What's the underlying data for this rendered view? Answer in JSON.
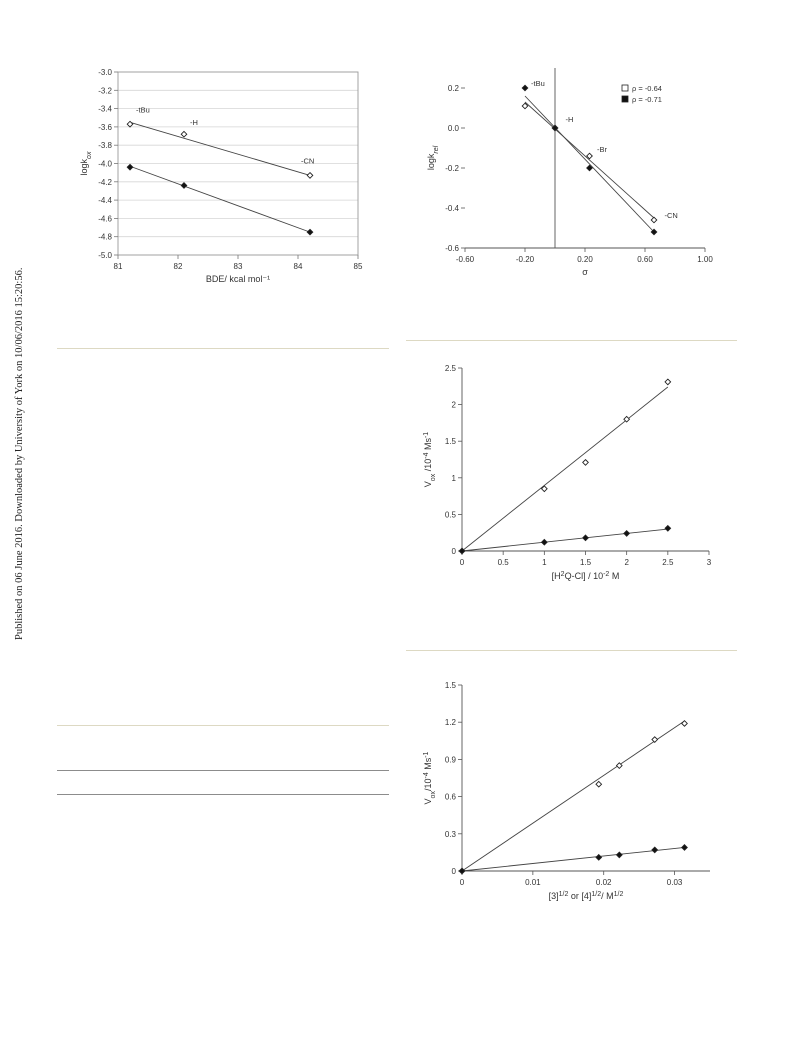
{
  "sidebar_text": "Published on 06 June 2016. Downloaded by University of York on 10/06/2016 15:20:56.",
  "chart_data": [
    {
      "id": "bde",
      "type": "scatter",
      "xlabel": "BDE/ kcal mol⁻¹",
      "ylabel_main": "logk",
      "ylabel_sub": "ox",
      "xlim": [
        81,
        85
      ],
      "ylim": [
        -5.0,
        -3.0
      ],
      "xticks": [
        81,
        82,
        83,
        84,
        85
      ],
      "xtick_labels": [
        "81",
        "82",
        "83",
        "84",
        "85"
      ],
      "yticks": [
        -3.0,
        -3.2,
        -3.4,
        -3.6,
        -3.8,
        -4.0,
        -4.2,
        -4.4,
        -4.6,
        -4.8,
        -5.0
      ],
      "ytick_labels": [
        "-3.0",
        "-3.2",
        "-3.4",
        "-3.6",
        "-3.8",
        "-4.0",
        "-4.2",
        "-4.4",
        "-4.6",
        "-4.8",
        "-5.0"
      ],
      "grid": true,
      "series": [
        {
          "marker": "open-diamond",
          "x": [
            81.2,
            82.1,
            84.2
          ],
          "y": [
            -3.57,
            -3.68,
            -4.13
          ],
          "fit": [
            [
              81.2,
              -3.55
            ],
            [
              84.2,
              -4.13
            ]
          ]
        },
        {
          "marker": "filled-diamond",
          "x": [
            81.2,
            82.1,
            84.2
          ],
          "y": [
            -4.04,
            -4.24,
            -4.75
          ],
          "fit": [
            [
              81.2,
              -4.03
            ],
            [
              84.2,
              -4.75
            ]
          ]
        }
      ],
      "annotations": [
        {
          "text": "-tBu",
          "x": 81.3,
          "y": -3.44
        },
        {
          "text": "-H",
          "x": 82.2,
          "y": -3.58
        },
        {
          "text": "-CN",
          "x": 84.05,
          "y": -4.0
        }
      ]
    },
    {
      "id": "hammett",
      "type": "scatter",
      "xlabel": "σ",
      "ylabel_main": "logk",
      "ylabel_sub": "rel",
      "xlim": [
        -0.6,
        1.0
      ],
      "ylim": [
        -0.6,
        0.3
      ],
      "xticks": [
        -0.6,
        -0.2,
        0.2,
        0.6,
        1.0
      ],
      "xtick_labels": [
        "-0.60",
        "-0.20",
        "0.20",
        "0.60",
        "1.00"
      ],
      "yticks": [
        0.2,
        0.0,
        -0.2,
        -0.4,
        -0.6
      ],
      "ytick_labels": [
        "0.2",
        "0.0",
        "-0.2",
        "-0.4",
        "-0.6"
      ],
      "grid": false,
      "legend": "top-right",
      "series": [
        {
          "name": "ρ = -0.64",
          "marker": "open-square",
          "point_marker": "open-diamond",
          "x": [
            -0.2,
            0.0,
            0.23,
            0.66
          ],
          "y": [
            0.11,
            0.0,
            -0.14,
            -0.46
          ],
          "fit": [
            [
              -0.2,
              0.13
            ],
            [
              0.66,
              -0.45
            ]
          ]
        },
        {
          "name": "ρ = -0.71",
          "marker": "filled-square",
          "point_marker": "filled-diamond",
          "x": [
            -0.2,
            0.0,
            0.23,
            0.66
          ],
          "y": [
            0.2,
            0.0,
            -0.2,
            -0.52
          ],
          "fit": [
            [
              -0.2,
              0.16
            ],
            [
              0.66,
              -0.52
            ]
          ]
        }
      ],
      "annotations": [
        {
          "text": "-tBu",
          "x": -0.16,
          "y": 0.21
        },
        {
          "text": "-H",
          "x": 0.07,
          "y": 0.03
        },
        {
          "text": "-Br",
          "x": 0.28,
          "y": -0.12
        },
        {
          "text": "-CN",
          "x": 0.73,
          "y": -0.45
        }
      ]
    },
    {
      "id": "conc",
      "type": "scatter",
      "xlabel_parts": [
        "[H",
        "2",
        "Q-Cl] / 10",
        "-2",
        " M"
      ],
      "ylabel_parts": [
        "V",
        "ox",
        " /10",
        "-4",
        " Ms",
        "-1"
      ],
      "xlim": [
        0,
        3
      ],
      "ylim": [
        0,
        2.5
      ],
      "xticks": [
        0,
        0.5,
        1,
        1.5,
        2,
        2.5,
        3
      ],
      "xtick_labels": [
        "0",
        "0.5",
        "1",
        "1.5",
        "2",
        "2.5",
        "3"
      ],
      "yticks": [
        0,
        0.5,
        1,
        1.5,
        2,
        2.5
      ],
      "ytick_labels": [
        "0",
        "0.5",
        "1",
        "1.5",
        "2",
        "2.5"
      ],
      "grid": false,
      "series": [
        {
          "marker": "open-diamond",
          "x": [
            0,
            1,
            1.5,
            2,
            2.5
          ],
          "y": [
            0,
            0.85,
            1.21,
            1.8,
            2.31
          ],
          "fit": [
            [
              0,
              0
            ],
            [
              2.5,
              2.24
            ]
          ]
        },
        {
          "marker": "filled-diamond",
          "x": [
            0,
            1,
            1.5,
            2,
            2.5
          ],
          "y": [
            0,
            0.12,
            0.18,
            0.24,
            0.31
          ],
          "fit": [
            [
              0,
              0
            ],
            [
              2.5,
              0.3
            ]
          ]
        }
      ]
    },
    {
      "id": "sqrt",
      "type": "scatter",
      "xlabel_parts": [
        "[3]",
        "1/2",
        " or [4]",
        "1/2",
        "/ M",
        "1/2"
      ],
      "ylabel_parts": [
        "V",
        "ox",
        "/10",
        "-4",
        " Ms",
        "-1"
      ],
      "xlim": [
        0,
        0.035
      ],
      "ylim": [
        0,
        1.5
      ],
      "xticks": [
        0,
        0.01,
        0.02,
        0.03
      ],
      "xtick_labels": [
        "0",
        "0.01",
        "0.02",
        "0.03"
      ],
      "yticks": [
        0,
        0.3,
        0.6,
        0.9,
        1.2,
        1.5
      ],
      "ytick_labels": [
        "0",
        "0.3",
        "0.6",
        "0.9",
        "1.2",
        "1.5"
      ],
      "grid": false,
      "series": [
        {
          "marker": "open-diamond",
          "x": [
            0,
            0.0193,
            0.0222,
            0.0272,
            0.0314
          ],
          "y": [
            0,
            0.7,
            0.85,
            1.06,
            1.19
          ],
          "fit": [
            [
              0,
              0
            ],
            [
              0.0314,
              1.21
            ]
          ]
        },
        {
          "marker": "filled-diamond",
          "x": [
            0,
            0.0193,
            0.0222,
            0.0272,
            0.0314
          ],
          "y": [
            0,
            0.11,
            0.13,
            0.17,
            0.19
          ],
          "fit": [
            [
              0,
              0
            ],
            [
              0.0314,
              0.19
            ]
          ]
        }
      ]
    }
  ]
}
